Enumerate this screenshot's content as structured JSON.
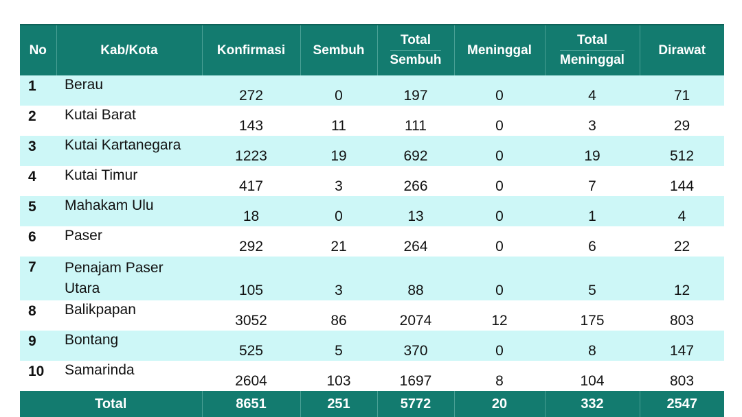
{
  "table": {
    "headers": {
      "no": "No",
      "kab": "Kab/Kota",
      "konfirmasi": "Konfirmasi",
      "sembuh": "Sembuh",
      "total_sembuh_1": "Total",
      "total_sembuh_2": "Sembuh",
      "meninggal": "Meninggal",
      "total_meninggal_1": "Total",
      "total_meninggal_2": "Meninggal",
      "dirawat": "Dirawat"
    },
    "rows": [
      {
        "no": "1",
        "kab": "Berau",
        "konfirmasi": "272",
        "sembuh": "0",
        "total_sembuh": "197",
        "meninggal": "0",
        "total_meninggal": "4",
        "dirawat": "71"
      },
      {
        "no": "2",
        "kab": "Kutai Barat",
        "konfirmasi": "143",
        "sembuh": "11",
        "total_sembuh": "111",
        "meninggal": "0",
        "total_meninggal": "3",
        "dirawat": "29"
      },
      {
        "no": "3",
        "kab": "Kutai Kartanegara",
        "konfirmasi": "1223",
        "sembuh": "19",
        "total_sembuh": "692",
        "meninggal": "0",
        "total_meninggal": "19",
        "dirawat": "512"
      },
      {
        "no": "4",
        "kab": "Kutai Timur",
        "konfirmasi": "417",
        "sembuh": "3",
        "total_sembuh": "266",
        "meninggal": "0",
        "total_meninggal": "7",
        "dirawat": "144"
      },
      {
        "no": "5",
        "kab": "Mahakam Ulu",
        "konfirmasi": "18",
        "sembuh": "0",
        "total_sembuh": "13",
        "meninggal": "0",
        "total_meninggal": "1",
        "dirawat": "4"
      },
      {
        "no": "6",
        "kab": "Paser",
        "konfirmasi": "292",
        "sembuh": "21",
        "total_sembuh": "264",
        "meninggal": "0",
        "total_meninggal": "6",
        "dirawat": "22"
      },
      {
        "no": "7",
        "kab_line1": "Penajam Paser",
        "kab_line2": "Utara",
        "konfirmasi": "105",
        "sembuh": "3",
        "total_sembuh": "88",
        "meninggal": "0",
        "total_meninggal": "5",
        "dirawat": "12"
      },
      {
        "no": "8",
        "kab": "Balikpapan",
        "konfirmasi": "3052",
        "sembuh": "86",
        "total_sembuh": "2074",
        "meninggal": "12",
        "total_meninggal": "175",
        "dirawat": "803"
      },
      {
        "no": "9",
        "kab": "Bontang",
        "konfirmasi": "525",
        "sembuh": "5",
        "total_sembuh": "370",
        "meninggal": "0",
        "total_meninggal": "8",
        "dirawat": "147"
      },
      {
        "no": "10",
        "kab": "Samarinda",
        "konfirmasi": "2604",
        "sembuh": "103",
        "total_sembuh": "1697",
        "meninggal": "8",
        "total_meninggal": "104",
        "dirawat": "803"
      }
    ],
    "total": {
      "label": "Total",
      "konfirmasi": "8651",
      "sembuh": "251",
      "total_sembuh": "5772",
      "meninggal": "20",
      "total_meninggal": "332",
      "dirawat": "2547"
    }
  },
  "colors": {
    "header_bg": "#137b6f",
    "row_alt_bg": "#cdf7f7",
    "row_bg": "#ffffff"
  }
}
